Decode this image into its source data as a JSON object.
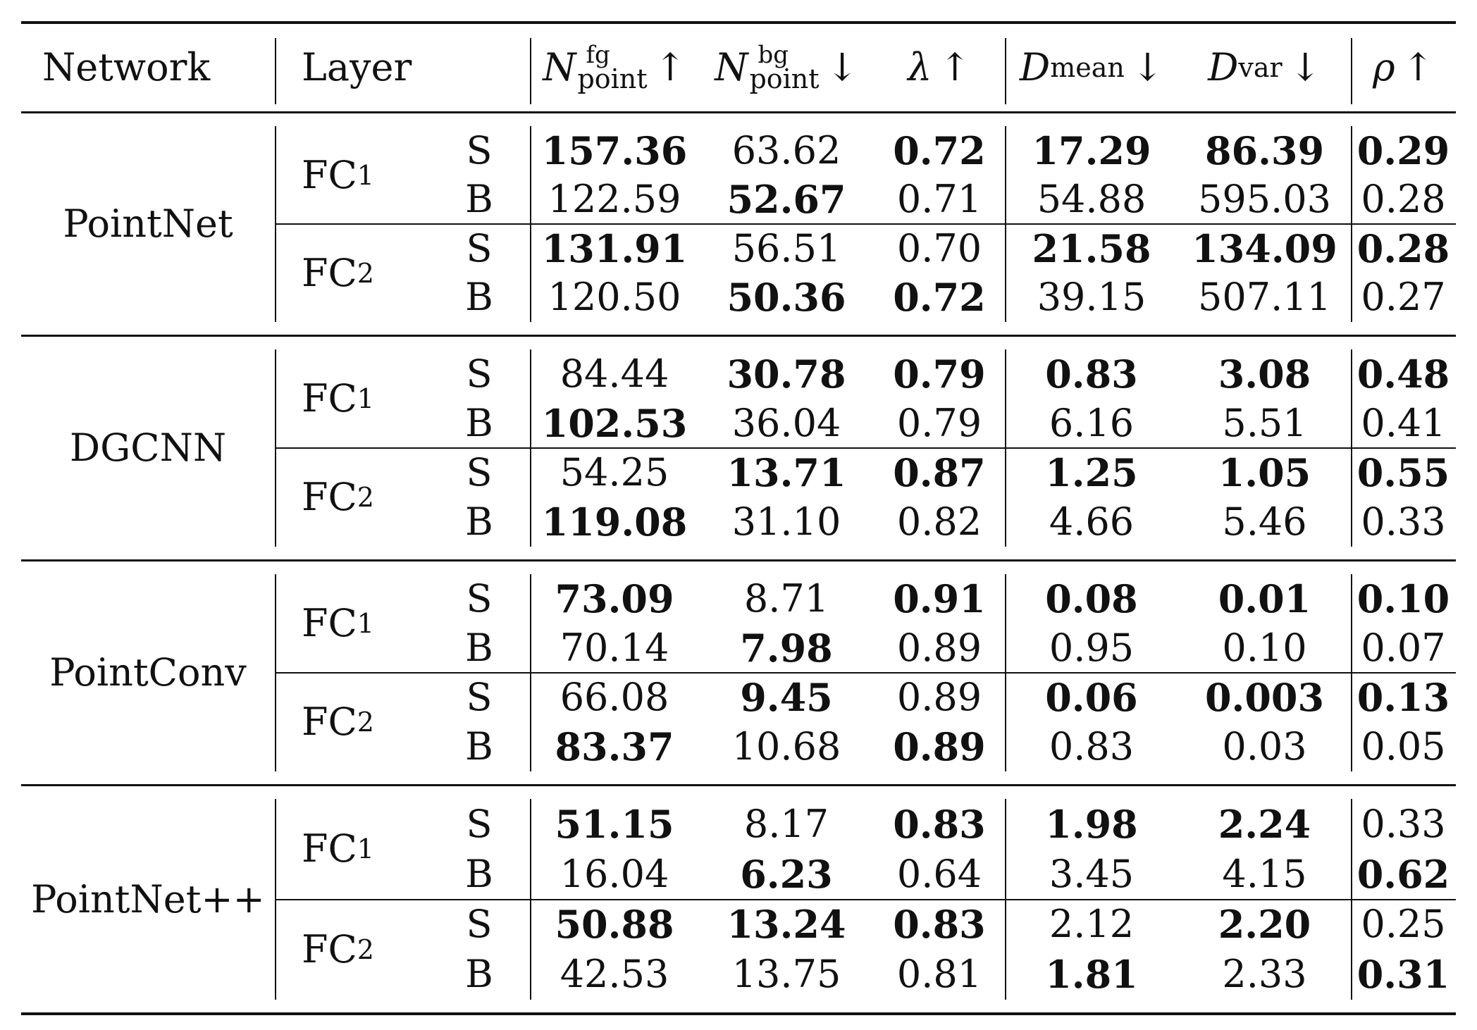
{
  "header": {
    "network": "Network",
    "layer": "Layer",
    "nfg": {
      "main": "N",
      "sup": "fg",
      "sub": "point",
      "arrow": "↑"
    },
    "nbg": {
      "main": "N",
      "sup": "bg",
      "sub": "point",
      "arrow": "↓"
    },
    "lambda": {
      "main": "λ",
      "arrow": "↑"
    },
    "dmean": {
      "main": "D",
      "sub": "mean",
      "arrow": "↓"
    },
    "dvar": {
      "main": "D",
      "sub": "var",
      "arrow": "↓"
    },
    "rho": {
      "main": "ρ",
      "arrow": "↑"
    }
  },
  "groups": [
    {
      "network": "PointNet",
      "layers": [
        {
          "name": "FC",
          "sub": "1",
          "rows": [
            {
              "tag": "S",
              "values": [
                "157.36",
                "63.62",
                "0.72",
                "17.29",
                "86.39",
                "0.29"
              ],
              "bold": [
                true,
                false,
                true,
                true,
                true,
                true
              ]
            },
            {
              "tag": "B",
              "values": [
                "122.59",
                "52.67",
                "0.71",
                "54.88",
                "595.03",
                "0.28"
              ],
              "bold": [
                false,
                true,
                false,
                false,
                false,
                false
              ]
            }
          ]
        },
        {
          "name": "FC",
          "sub": "2",
          "rows": [
            {
              "tag": "S",
              "values": [
                "131.91",
                "56.51",
                "0.70",
                "21.58",
                "134.09",
                "0.28"
              ],
              "bold": [
                true,
                false,
                false,
                true,
                true,
                true
              ]
            },
            {
              "tag": "B",
              "values": [
                "120.50",
                "50.36",
                "0.72",
                "39.15",
                "507.11",
                "0.27"
              ],
              "bold": [
                false,
                true,
                true,
                false,
                false,
                false
              ]
            }
          ]
        }
      ]
    },
    {
      "network": "DGCNN",
      "layers": [
        {
          "name": "FC",
          "sub": "1",
          "rows": [
            {
              "tag": "S",
              "values": [
                "84.44",
                "30.78",
                "0.79",
                "0.83",
                "3.08",
                "0.48"
              ],
              "bold": [
                false,
                true,
                true,
                true,
                true,
                true
              ]
            },
            {
              "tag": "B",
              "values": [
                "102.53",
                "36.04",
                "0.79",
                "6.16",
                "5.51",
                "0.41"
              ],
              "bold": [
                true,
                false,
                false,
                false,
                false,
                false
              ]
            }
          ]
        },
        {
          "name": "FC",
          "sub": "2",
          "rows": [
            {
              "tag": "S",
              "values": [
                "54.25",
                "13.71",
                "0.87",
                "1.25",
                "1.05",
                "0.55"
              ],
              "bold": [
                false,
                true,
                true,
                true,
                true,
                true
              ]
            },
            {
              "tag": "B",
              "values": [
                "119.08",
                "31.10",
                "0.82",
                "4.66",
                "5.46",
                "0.33"
              ],
              "bold": [
                true,
                false,
                false,
                false,
                false,
                false
              ]
            }
          ]
        }
      ]
    },
    {
      "network": "PointConv",
      "layers": [
        {
          "name": "FC",
          "sub": "1",
          "rows": [
            {
              "tag": "S",
              "values": [
                "73.09",
                "8.71",
                "0.91",
                "0.08",
                "0.01",
                "0.10"
              ],
              "bold": [
                true,
                false,
                true,
                true,
                true,
                true
              ]
            },
            {
              "tag": "B",
              "values": [
                "70.14",
                "7.98",
                "0.89",
                "0.95",
                "0.10",
                "0.07"
              ],
              "bold": [
                false,
                true,
                false,
                false,
                false,
                false
              ]
            }
          ]
        },
        {
          "name": "FC",
          "sub": "2",
          "rows": [
            {
              "tag": "S",
              "values": [
                "66.08",
                "9.45",
                "0.89",
                "0.06",
                "0.003",
                "0.13"
              ],
              "bold": [
                false,
                true,
                false,
                true,
                true,
                true
              ]
            },
            {
              "tag": "B",
              "values": [
                "83.37",
                "10.68",
                "0.89",
                "0.83",
                "0.03",
                "0.05"
              ],
              "bold": [
                true,
                false,
                true,
                false,
                false,
                false
              ]
            }
          ]
        }
      ]
    },
    {
      "network": "PointNet++",
      "layers": [
        {
          "name": "FC",
          "sub": "1",
          "rows": [
            {
              "tag": "S",
              "values": [
                "51.15",
                "8.17",
                "0.83",
                "1.98",
                "2.24",
                "0.33"
              ],
              "bold": [
                true,
                false,
                true,
                true,
                true,
                false
              ]
            },
            {
              "tag": "B",
              "values": [
                "16.04",
                "6.23",
                "0.64",
                "3.45",
                "4.15",
                "0.62"
              ],
              "bold": [
                false,
                true,
                false,
                false,
                false,
                true
              ]
            }
          ]
        },
        {
          "name": "FC",
          "sub": "2",
          "rows": [
            {
              "tag": "S",
              "values": [
                "50.88",
                "13.24",
                "0.83",
                "2.12",
                "2.20",
                "0.25"
              ],
              "bold": [
                true,
                true,
                true,
                false,
                true,
                false
              ]
            },
            {
              "tag": "B",
              "values": [
                "42.53",
                "13.75",
                "0.81",
                "1.81",
                "2.33",
                "0.31"
              ],
              "bold": [
                false,
                false,
                false,
                true,
                false,
                true
              ]
            }
          ]
        }
      ]
    }
  ]
}
